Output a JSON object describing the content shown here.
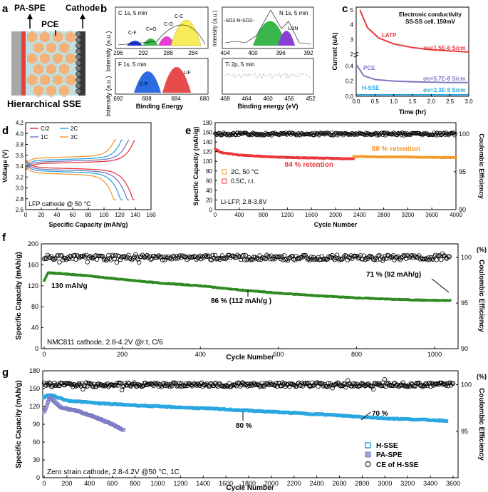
{
  "panels": {
    "a": {
      "letter": "a",
      "labels": {
        "pa_spe": "PA-SPE",
        "cathode": "Cathode",
        "pce": "PCE"
      },
      "caption": "Hierarchical SSE"
    },
    "b": {
      "letter": "b",
      "ylabel": "Intensity (a.u.)",
      "xlabel_left": "Binding Energy",
      "xlabel_right": "Binding energy (eV)",
      "c1s": {
        "title": "C 1s, 5 min",
        "peaks": [
          "C-F",
          "C=O",
          "C-O",
          "C-C"
        ],
        "ticks": [
          "296",
          "292",
          "288",
          "284"
        ]
      },
      "n1s": {
        "title": "N 1s, 5 min",
        "peaks": [
          "-SO2-N-SO2-",
          "Li3N"
        ],
        "ticks": [
          "404",
          "400",
          "396",
          "392"
        ]
      },
      "f1s": {
        "title": "F 1s, 5 min",
        "peaks": [
          "C-F",
          "LiF"
        ],
        "ticks": [
          "692",
          "688",
          "684",
          "680"
        ]
      },
      "ti2p": {
        "title": "Ti 2p, 5 min",
        "ticks": [
          "468",
          "464",
          "460",
          "456",
          "452"
        ]
      }
    },
    "c": {
      "letter": "c",
      "title": "Electronic conductivity",
      "subtitle": "SS-SS cell, 150mV",
      "ylabel": "Current (uA)",
      "xlabel": "Time (hr)",
      "xticks": [
        "0.0",
        "0.5",
        "1.0",
        "1.5",
        "2.0",
        "2.5",
        "3.0"
      ],
      "yticks_top": [
        "2",
        "3",
        "4",
        "5"
      ],
      "yticks_bottom": [
        "0.0",
        "0.2",
        "0.4"
      ],
      "series": [
        {
          "name": "LATP",
          "sigma": "σe=1.5E-6 S/cm",
          "color": "#e8383d"
        },
        {
          "name": "PCE",
          "sigma": "σe=5.7E-8 S/cm",
          "color": "#7b78c2"
        },
        {
          "name": "H-SSE",
          "sigma": "σe=2.3E-9 S/cm",
          "color": "#2aa6e0"
        }
      ]
    },
    "d": {
      "letter": "d",
      "ylabel": "Voltage (V)",
      "xlabel": "Specific Capacity (mAh/g)",
      "annotation": "LFP cathode @  50 °C",
      "xticks": [
        "0",
        "20",
        "40",
        "60",
        "80",
        "100",
        "120",
        "140",
        "160"
      ],
      "yticks": [
        "2.6",
        "2.8",
        "3.0",
        "3.2",
        "3.4",
        "3.6",
        "3.8",
        "4.0",
        "4.2"
      ],
      "legend": [
        {
          "name": "C/2",
          "color": "#e8383d"
        },
        {
          "name": "2C",
          "color": "#2aa6e0"
        },
        {
          "name": "1C",
          "color": "#7b78c2"
        },
        {
          "name": "3C",
          "color": "#f39a2e"
        }
      ]
    },
    "e": {
      "letter": "e",
      "ylabel": "Specific Capacity (mAh/g)",
      "ylabel_right": "Coulombic Efficiency",
      "xlabel": "Cycle Number",
      "xticks": [
        "0",
        "400",
        "800",
        "1200",
        "1600",
        "2000",
        "2400",
        "2800",
        "3200",
        "3600",
        "4000"
      ],
      "yticks": [
        "0",
        "20",
        "40",
        "60",
        "80",
        "100",
        "120",
        "140",
        "160",
        "180"
      ],
      "yticks_right": [
        "90",
        "95",
        "100"
      ],
      "ret_orange": "88 % retention",
      "ret_red": "84 % retention",
      "legend": [
        {
          "name": "2C, 50 °C",
          "color": "#f39a2e"
        },
        {
          "name": "0.5C, r.t.",
          "color": "#e8383d"
        }
      ],
      "label": "Li-LFP, 2.8-3.8V"
    },
    "f": {
      "letter": "f",
      "ylabel": "Specific Capacity (mAh/g)",
      "ylabel_right": "Coulombic  Efficiency",
      "unit": "(%)",
      "xlabel": "Cycle Number",
      "xticks": [
        "0",
        "200",
        "400",
        "600",
        "800",
        "1000"
      ],
      "yticks": [
        "0",
        "40",
        "80",
        "120",
        "160",
        "200"
      ],
      "yticks_right": [
        "90",
        "95",
        "100"
      ],
      "ann_start": "130 mAh/g",
      "ann_mid": "86 % (112 mAh/g )",
      "ann_end": "71 % (92 mAh/g)",
      "label": "NMC811 cathode, 2.8-4.2V @r.t, C/6"
    },
    "g": {
      "letter": "g",
      "ylabel": "Specific Capacity (mAh/g)",
      "ylabel_right": "Coulombic  Efficiency",
      "unit": "(%)",
      "xlabel": "Cycle Number",
      "xticks": [
        "0",
        "200",
        "400",
        "600",
        "800",
        "1000",
        "1200",
        "1400",
        "1600",
        "1800",
        "2000",
        "2200",
        "2400",
        "2600",
        "2800",
        "3000",
        "3200",
        "3400",
        "3600"
      ],
      "yticks": [
        "0",
        "30",
        "60",
        "90",
        "120",
        "150",
        "180"
      ],
      "yticks_right": [
        "95",
        "100"
      ],
      "ann_80": "80 %",
      "ann_70": "70 %",
      "legend": [
        {
          "name": "H-SSE",
          "color": "#2aa6e0"
        },
        {
          "name": "PA-SPE",
          "color": "#7b78c2"
        },
        {
          "name": "CE of H-SSE",
          "color": "#000000"
        }
      ],
      "label": "Zero strain cathode, 2.8-4.2V @50  °C, 1C"
    }
  },
  "chart_data": [
    {
      "type": "line",
      "panel": "c",
      "title": "Electronic conductivity",
      "xlabel": "Time (hr)",
      "ylabel": "Current (uA)",
      "xlim": [
        0,
        3
      ],
      "series": [
        {
          "name": "LATP",
          "x": [
            0.1,
            0.3,
            0.6,
            1.0,
            1.5,
            2.0,
            2.5,
            3.0
          ],
          "values": [
            5.0,
            3.8,
            3.1,
            2.7,
            2.45,
            2.3,
            2.22,
            2.15
          ]
        },
        {
          "name": "PCE",
          "x": [
            0,
            0.2,
            0.5,
            1.0,
            1.5,
            2.0,
            2.5,
            3.0
          ],
          "values": [
            0.42,
            0.27,
            0.22,
            0.2,
            0.19,
            0.185,
            0.18,
            0.18
          ]
        },
        {
          "name": "H-SSE",
          "x": [
            0,
            3.0
          ],
          "values": [
            0.02,
            0.02
          ]
        }
      ]
    },
    {
      "type": "line",
      "panel": "d",
      "xlabel": "Specific Capacity (mAh/g)",
      "ylabel": "Voltage (V)",
      "xlim": [
        0,
        160
      ],
      "ylim": [
        2.6,
        4.2
      ],
      "series": [
        {
          "name": "C/2",
          "end_capacity": 139
        },
        {
          "name": "1C",
          "end_capacity": 132
        },
        {
          "name": "2C",
          "end_capacity": 124
        },
        {
          "name": "3C",
          "end_capacity": 116
        }
      ]
    },
    {
      "type": "scatter",
      "panel": "e",
      "xlabel": "Cycle Number",
      "ylabel": "Specific Capacity (mAh/g)",
      "xlim": [
        0,
        4000
      ],
      "ylim": [
        0,
        180
      ],
      "series": [
        {
          "name": "0.5C, r.t.",
          "x": [
            0,
            100,
            400,
            800,
            1200,
            1600,
            2000,
            2300
          ],
          "values": [
            125,
            118,
            113,
            110,
            108,
            107,
            106,
            105
          ]
        },
        {
          "name": "2C, 50 °C",
          "x": [
            2300,
            2800,
            3200,
            3600,
            4000
          ],
          "values": [
            110,
            109,
            109,
            108,
            108
          ]
        },
        {
          "name": "CE",
          "x": [
            0,
            4000
          ],
          "values": [
            100,
            100
          ]
        }
      ]
    },
    {
      "type": "scatter",
      "panel": "f",
      "xlabel": "Cycle Number",
      "ylabel": "Specific Capacity (mAh/g)",
      "xlim": [
        0,
        1050
      ],
      "ylim": [
        0,
        200
      ],
      "series": [
        {
          "name": "NMC811",
          "x": [
            0,
            10,
            100,
            200,
            300,
            400,
            500,
            600,
            700,
            800,
            900,
            1000,
            1040
          ],
          "values": [
            130,
            145,
            140,
            132,
            125,
            120,
            112,
            106,
            101,
            97,
            94,
            92,
            92
          ]
        },
        {
          "name": "CE",
          "x": [
            0,
            1040
          ],
          "values": [
            100,
            100
          ]
        }
      ]
    },
    {
      "type": "scatter",
      "panel": "g",
      "xlabel": "Cycle Number",
      "ylabel": "Specific Capacity (mAh/g)",
      "xlim": [
        0,
        3600
      ],
      "ylim": [
        0,
        180
      ],
      "series": [
        {
          "name": "H-SSE",
          "x": [
            0,
            50,
            200,
            500,
            1000,
            1500,
            1900,
            2500,
            3000,
            3550
          ],
          "values": [
            135,
            140,
            130,
            125,
            120,
            116,
            112,
            106,
            100,
            96
          ]
        },
        {
          "name": "PA-SPE",
          "x": [
            0,
            50,
            150,
            300,
            450,
            600,
            700
          ],
          "values": [
            110,
            135,
            118,
            112,
            102,
            90,
            80
          ]
        },
        {
          "name": "CE of H-SSE",
          "x": [
            0,
            3600
          ],
          "values": [
            100,
            100
          ]
        }
      ]
    }
  ]
}
